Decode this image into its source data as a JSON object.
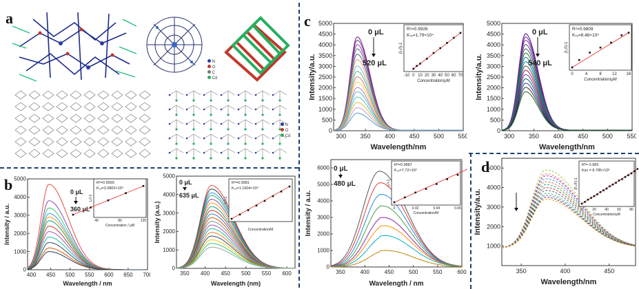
{
  "figure": {
    "panel_labels": [
      "a",
      "b",
      "c",
      "d"
    ]
  },
  "structures": {
    "legend_a": [
      "N",
      "O",
      "C",
      "Cd"
    ],
    "legend_b": [
      "N",
      "O",
      "Cd"
    ]
  },
  "chart_data": [
    {
      "id": "c1",
      "type": "line",
      "panel": "c",
      "xlabel": "Wavelength/nm",
      "ylabel": "Intensity/a.u.",
      "xlim": [
        285,
        550
      ],
      "ylim": [
        0,
        5000
      ],
      "xticks": [
        300,
        350,
        400,
        450,
        500,
        550
      ],
      "yticks": [
        0,
        500,
        1000,
        1500,
        2000,
        2500,
        3000,
        3500,
        4000,
        4500,
        5000
      ],
      "annotation_top": "0 μL",
      "annotation_bottom": "520 μL",
      "peak_x": 333,
      "peak_values": [
        4350,
        4200,
        4000,
        3800,
        3550,
        3300,
        3000,
        2750,
        2500,
        2250,
        2000,
        1800,
        1550,
        1300,
        1050,
        800
      ],
      "inset": {
        "type": "scatter",
        "xlabel": "Concentration/μM",
        "ylabel": "(I₀/I)-1",
        "r2": "R²=0.9926",
        "ksv": "Kₛᵥ=1.79×10⁴",
        "xticks": [
          -10,
          0,
          10,
          20,
          30,
          40,
          50,
          60,
          70
        ],
        "x": [
          0,
          5,
          10,
          20,
          30,
          40,
          50,
          60,
          70
        ],
        "y": [
          0.0,
          0.1,
          0.18,
          0.35,
          0.55,
          0.72,
          0.9,
          1.08,
          1.25
        ]
      }
    },
    {
      "id": "c2",
      "type": "line",
      "panel": "c",
      "xlabel": "Wavelength/nm",
      "ylabel": "Intensity/a.u.",
      "xlim": [
        285,
        550
      ],
      "ylim": [
        0,
        5000
      ],
      "xticks": [
        300,
        350,
        400,
        450,
        500,
        550
      ],
      "yticks": [
        0,
        500,
        1000,
        1500,
        2000,
        2500,
        3000,
        3500,
        4000,
        4500,
        5000
      ],
      "annotation_top": "0 μL",
      "annotation_bottom": "540 μL",
      "peak_x": 333,
      "peak_values": [
        4500,
        4350,
        4200,
        4000,
        3800,
        3600,
        3400,
        3200,
        3000,
        2800,
        2600,
        2400,
        2200,
        2000,
        1800
      ],
      "inset": {
        "type": "scatter",
        "xlabel": "Concentration/μM",
        "ylabel": "(I₀/I)-1",
        "r2": "R²=0.9809",
        "ksv": "Kₛᵥ=8.48×10³",
        "xticks": [
          0,
          4,
          8,
          12,
          16
        ],
        "x": [
          0,
          2,
          5,
          8,
          11,
          14,
          16
        ],
        "y": [
          0.0,
          0.03,
          0.06,
          0.08,
          0.1,
          0.13,
          0.14
        ]
      }
    },
    {
      "id": "b1",
      "type": "line",
      "panel": "b",
      "xlabel": "Wavelength / nm",
      "ylabel": "Intensity / a.u.",
      "xlim": [
        390,
        700
      ],
      "ylim": [
        0,
        5000
      ],
      "xticks": [
        400,
        450,
        500,
        550,
        600,
        650,
        700
      ],
      "yticks": [
        0,
        1000,
        2000,
        3000,
        4000,
        5000
      ],
      "annotation_top": "0 μL",
      "annotation_bottom": "360 μL",
      "peak_x": 445,
      "peak_values": [
        4700,
        3800,
        3400,
        3100,
        2900,
        2700,
        2400,
        2100,
        1800,
        1500,
        1200,
        1000
      ],
      "inset": {
        "type": "scatter",
        "xlabel": "Concentration / μM",
        "ylabel": "I₀/I-1",
        "r2": "R²=0.9993",
        "ksv": "Kₛᵥ=3.3802×10³",
        "xticks": [
          40,
          80,
          120
        ],
        "x": [
          0,
          30,
          60,
          90,
          120
        ],
        "y": [
          0.0,
          0.1,
          0.2,
          0.3,
          0.4
        ]
      }
    },
    {
      "id": "b2",
      "type": "line",
      "panel": "b",
      "xlabel": "Wavelength (nm)",
      "ylabel": "Intensity (a.u.)",
      "xlim": [
        330,
        620
      ],
      "ylim": [
        0,
        5000
      ],
      "xticks": [
        350,
        400,
        450,
        500,
        550,
        600
      ],
      "yticks": [
        0,
        1000,
        2000,
        3000,
        4000,
        5000
      ],
      "annotation_top": "0 μL",
      "annotation_bottom": "635 μL",
      "peak_x": 415,
      "peak_values": [
        4500,
        4300,
        4100,
        3950,
        3750,
        3550,
        3350,
        3150,
        2950,
        2750,
        2550,
        2350,
        2150,
        1950,
        1750,
        1550,
        1350,
        1150
      ],
      "inset": {
        "type": "scatter",
        "xlabel": "Concentration/M",
        "ylabel": "I₀/I-1",
        "r2": "R²=0.9981",
        "ksv": "Kₛᵥ=1.1504×10⁴",
        "x": [
          0,
          1,
          2,
          3,
          4,
          5,
          6,
          7
        ],
        "y": [
          0.0,
          0.12,
          0.24,
          0.37,
          0.5,
          0.63,
          0.76,
          0.9
        ]
      }
    },
    {
      "id": "c3",
      "type": "line",
      "panel": "c",
      "xlabel": "Wavelength / nm",
      "ylabel": "Intensity / a.u.",
      "xlim": [
        330,
        600
      ],
      "ylim": [
        0,
        6500
      ],
      "xticks": [
        350,
        400,
        450,
        500,
        550,
        600
      ],
      "yticks": [
        0,
        1000,
        2000,
        3000,
        4000,
        5000,
        6000
      ],
      "annotation_top": "0 μL",
      "annotation_bottom": "480 μL",
      "peak_x": 430,
      "peak_values": [
        5800,
        5100,
        4400,
        3700,
        3000,
        2500,
        1900,
        1000
      ],
      "inset": {
        "type": "scatter",
        "xlabel": "Concentration/M",
        "ylabel": "I₀/I-1",
        "r2": "R²=0.9887",
        "ksv": "Kₛᵥ=7.72×10³",
        "xticks": [
          0.0,
          0.02,
          0.04,
          0.06
        ],
        "x": [
          0.0,
          0.01,
          0.02,
          0.03,
          0.04,
          0.05,
          0.06,
          0.07
        ],
        "y": [
          0.0,
          0.08,
          0.16,
          0.22,
          0.3,
          0.38,
          0.45,
          0.55
        ]
      }
    },
    {
      "id": "d1",
      "type": "line",
      "panel": "d",
      "xlabel": "Wavelength/nm",
      "ylabel": "Intensity/a.u.",
      "xlim": [
        328,
        480
      ],
      "ylim": [
        0,
        5500
      ],
      "xticks": [
        350,
        400,
        450
      ],
      "yticks": [
        1000,
        2000,
        3000,
        4000,
        5000
      ],
      "peak_x": 378,
      "peak_values": [
        4000,
        3800,
        3700,
        3550,
        3400,
        3250,
        3100,
        2950,
        2800,
        2700,
        2600,
        2500
      ],
      "inset": {
        "type": "scatter",
        "xlabel": "Concentration/μM",
        "ylabel": "(F₀/F)-1",
        "r2": "R²= 0.983",
        "ksv": "Ksv = 8.785×10³",
        "xticks": [
          0,
          20,
          40,
          60,
          80
        ],
        "x": [
          0,
          5,
          10,
          15,
          20,
          25,
          30,
          35,
          40,
          45,
          50,
          55,
          60,
          65,
          70,
          75,
          80,
          85,
          90
        ],
        "y": [
          0.0,
          0.04,
          0.09,
          0.13,
          0.17,
          0.21,
          0.26,
          0.3,
          0.34,
          0.39,
          0.43,
          0.47,
          0.52,
          0.55,
          0.6,
          0.64,
          0.68,
          0.73,
          0.78
        ]
      }
    }
  ]
}
